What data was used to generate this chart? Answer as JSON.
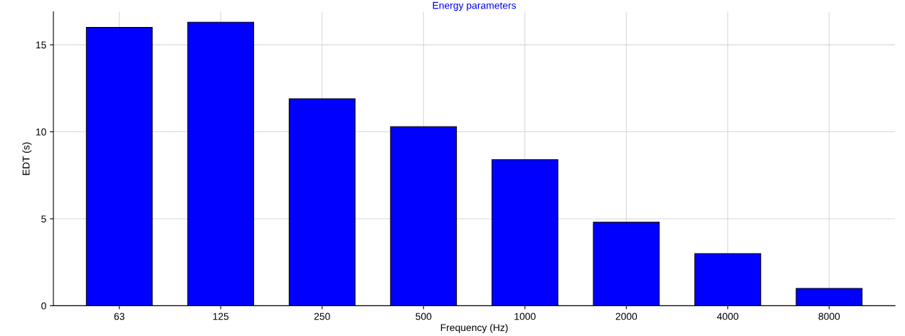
{
  "chart_data": {
    "type": "bar",
    "title": "Energy parameters",
    "xlabel": "Frequency (Hz)",
    "ylabel": "EDT (s)",
    "categories": [
      "63",
      "125",
      "250",
      "500",
      "1000",
      "2000",
      "4000",
      "8000"
    ],
    "values": [
      16.0,
      16.3,
      11.9,
      10.3,
      8.4,
      4.8,
      3.0,
      1.0
    ],
    "color": "#0000ff",
    "ylim": [
      0,
      16.9
    ],
    "yticks": [
      0,
      5,
      10,
      15
    ],
    "grid": true
  }
}
